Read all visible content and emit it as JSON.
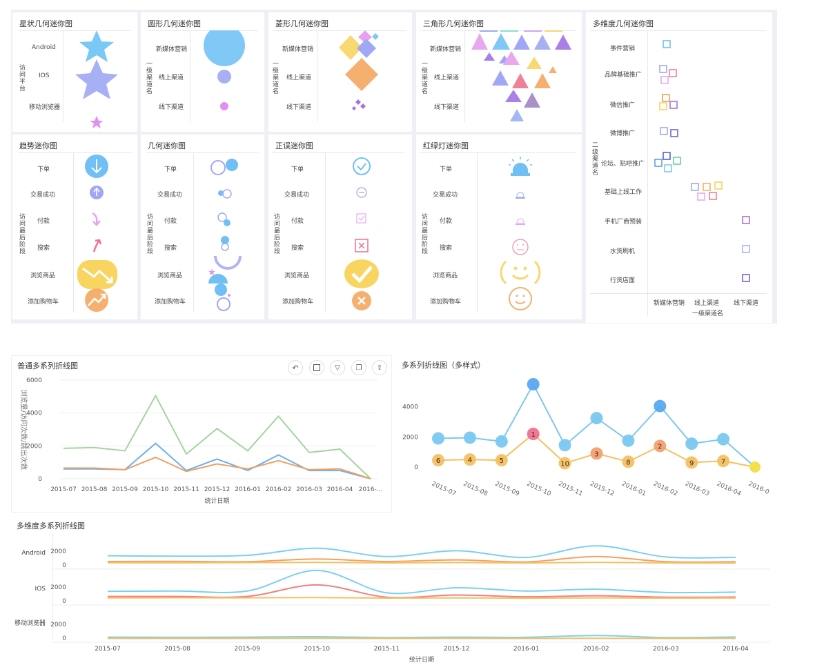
{
  "mini": {
    "star": {
      "title": "星状几何迷你图",
      "axis": "访问平台",
      "rows": [
        "Android",
        "IOS",
        "移动浏览器"
      ]
    },
    "circle": {
      "title": "圆形几何迷你图",
      "axis": "一级渠道名",
      "rows": [
        "新媒体营销",
        "线上渠道",
        "线下渠道"
      ]
    },
    "diamond": {
      "title": "菱形几何迷你图",
      "axis": "一级渠道名",
      "rows": [
        "新媒体营销",
        "线上渠道",
        "线下渠道"
      ]
    },
    "triangle": {
      "title": "三角形几何迷你图",
      "axis": "一级渠道名",
      "rows": [
        "新媒体营销",
        "线上渠道",
        "线下渠道"
      ]
    },
    "trend": {
      "title": "趋势迷你图",
      "axis": "访问最后阶段",
      "rows": [
        "下单",
        "交易成功",
        "付款",
        "搜索",
        "浏览商品",
        "添加购物车"
      ]
    },
    "geo": {
      "title": "几何迷你图",
      "axis": "访问最后阶段",
      "rows": [
        "下单",
        "交易成功",
        "付款",
        "搜索",
        "浏览商品",
        "添加购物车"
      ]
    },
    "check": {
      "title": "正误迷你图",
      "axis": "访问最后阶段",
      "rows": [
        "下单",
        "交易成功",
        "付款",
        "搜索",
        "浏览商品",
        "添加购物车"
      ]
    },
    "light": {
      "title": "红绿灯迷你图",
      "axis": "访问最后阶段",
      "rows": [
        "下单",
        "交易成功",
        "付款",
        "搜索",
        "浏览商品",
        "添加购物车"
      ]
    },
    "multi": {
      "title": "多维度几何迷你图",
      "axis": "二级渠道名",
      "rows": [
        "事件营销",
        "品牌基础推广",
        "微信推广",
        "微博推广",
        "论坛、贴吧推广",
        "基础上线工作",
        "手机厂商预装",
        "水货刷机",
        "行货店面"
      ],
      "cols": [
        "新媒体营销",
        "线上渠道",
        "线下渠道"
      ],
      "xlabel": "一级渠道名"
    }
  },
  "chart_data": [
    {
      "type": "line",
      "title": "普通多系列折线图",
      "xlabel": "统计日期",
      "ylabel": "浏览量/访问次数/跳出次数",
      "ylim": [
        0,
        6000
      ],
      "yticks": [
        "0",
        "2000",
        "4000",
        "6000"
      ],
      "categories": [
        "2015-07",
        "2015-08",
        "2015-09",
        "2015-10",
        "2015-11",
        "2015-12",
        "2016-01",
        "2016-02",
        "2016-03",
        "2016-04",
        "2016-..."
      ],
      "series": [
        {
          "color": "#a3d4a0",
          "values": [
            1850,
            1900,
            1700,
            5050,
            1500,
            3050,
            1700,
            3800,
            1600,
            1800,
            0
          ]
        },
        {
          "color": "#6ab0f0",
          "values": [
            600,
            600,
            550,
            2150,
            500,
            1200,
            500,
            1450,
            500,
            500,
            0
          ]
        },
        {
          "color": "#f0a060",
          "values": [
            650,
            650,
            550,
            1300,
            450,
            900,
            600,
            1100,
            550,
            600,
            0
          ]
        }
      ]
    },
    {
      "type": "line",
      "title": "多系列折线图（多样式）",
      "yticks": [
        "0",
        "2000",
        "4000"
      ],
      "ylim": [
        0,
        5500
      ],
      "categories": [
        "2015-07",
        "2015-08",
        "2015-09",
        "2015-10",
        "2015-11",
        "2015-12",
        "2016-01",
        "2016-02",
        "2016-03",
        "2016-04",
        "2016-0"
      ],
      "series": [
        {
          "color": "#7ac8f0",
          "values": [
            1900,
            1950,
            1700,
            5500,
            1450,
            3250,
            1750,
            4050,
            1550,
            1850,
            0
          ]
        },
        {
          "color": "#f5c060",
          "values": [
            450,
            500,
            450,
            2200,
            250,
            900,
            350,
            1400,
            300,
            400,
            0
          ],
          "labels": [
            "6",
            "4",
            "5",
            "1",
            "10",
            "3",
            "8",
            "2",
            "9",
            "7",
            ""
          ]
        }
      ]
    },
    {
      "type": "line",
      "title": "多维度多系列折线图",
      "xlabel": "统计日期",
      "categories": [
        "2015-07",
        "2015-08",
        "2015-09",
        "2015-10",
        "2015-11",
        "2015-12",
        "2016-01",
        "2016-02",
        "2016-03",
        "2016-04"
      ],
      "panels": [
        {
          "name": "Android",
          "yticks": [
            "0",
            "2000"
          ],
          "series": [
            {
              "color": "#7ad0f0",
              "values": [
                1200,
                1150,
                1250,
                2100,
                1100,
                1800,
                1000,
                2400,
                1050,
                1000
              ]
            },
            {
              "color": "#f5a060",
              "values": [
                500,
                520,
                480,
                800,
                500,
                700,
                450,
                1100,
                480,
                470
              ]
            },
            {
              "color": "#f5c060",
              "values": [
                350,
                340,
                360,
                400,
                330,
                380,
                320,
                400,
                330,
                320
              ]
            }
          ]
        },
        {
          "name": "IOS",
          "yticks": [
            "0",
            "2000"
          ],
          "series": [
            {
              "color": "#7ad0f0",
              "values": [
                1400,
                1450,
                1450,
                4300,
                1200,
                1900,
                1450,
                1700,
                1250,
                1300
              ]
            },
            {
              "color": "#f08080",
              "values": [
                700,
                700,
                700,
                2300,
                600,
                900,
                650,
                800,
                600,
                620
              ]
            },
            {
              "color": "#f5c060",
              "values": [
                500,
                520,
                510,
                550,
                480,
                500,
                470,
                500,
                480,
                490
              ]
            }
          ]
        },
        {
          "name": "移动浏览器",
          "yticks": [
            "0",
            "2000"
          ],
          "series": [
            {
              "color": "#7ad0f0",
              "values": [
                200,
                180,
                200,
                250,
                150,
                200,
                180,
                400,
                150,
                220
              ]
            },
            {
              "color": "#f5c060",
              "values": [
                50,
                40,
                50,
                60,
                40,
                50,
                40,
                60,
                40,
                50
              ]
            }
          ]
        }
      ]
    }
  ],
  "toolbar": {
    "icons": [
      "undo-icon",
      "expand-icon",
      "filter-icon",
      "layout-icon",
      "export-icon"
    ]
  }
}
